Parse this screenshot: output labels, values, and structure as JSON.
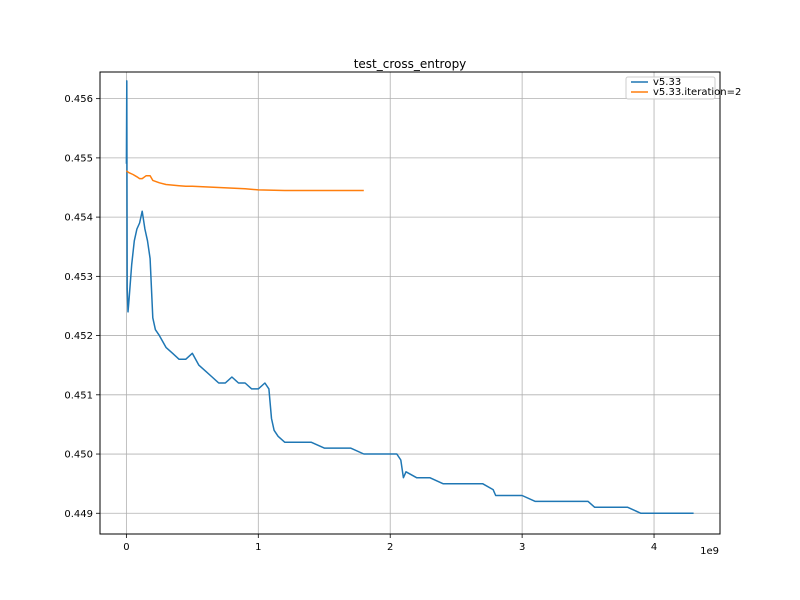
{
  "chart_data": {
    "type": "line",
    "title": "test_cross_entropy",
    "xlabel": "",
    "ylabel": "",
    "x_offset_label": "1e9",
    "xlim": [
      -0.2,
      4.5
    ],
    "ylim": [
      0.44865,
      0.45645
    ],
    "x_ticks": [
      0,
      1,
      2,
      3,
      4
    ],
    "x_tick_labels": [
      "0",
      "1",
      "2",
      "3",
      "4"
    ],
    "y_ticks": [
      0.449,
      0.45,
      0.451,
      0.452,
      0.453,
      0.454,
      0.455,
      0.456
    ],
    "y_tick_labels": [
      "0.449",
      "0.450",
      "0.451",
      "0.452",
      "0.453",
      "0.454",
      "0.455",
      "0.456"
    ],
    "grid": true,
    "legend_position": "top-right",
    "series": [
      {
        "name": "v5.33",
        "color": "#1f77b4",
        "x": [
          0.0,
          0.003,
          0.006,
          0.012,
          0.02,
          0.04,
          0.06,
          0.08,
          0.1,
          0.12,
          0.14,
          0.16,
          0.18,
          0.2,
          0.22,
          0.25,
          0.3,
          0.35,
          0.4,
          0.45,
          0.5,
          0.55,
          0.6,
          0.65,
          0.7,
          0.75,
          0.8,
          0.85,
          0.9,
          0.95,
          1.0,
          1.05,
          1.08,
          1.1,
          1.12,
          1.15,
          1.2,
          1.3,
          1.4,
          1.5,
          1.6,
          1.7,
          1.8,
          1.9,
          2.0,
          2.05,
          2.08,
          2.1,
          2.12,
          2.2,
          2.3,
          2.4,
          2.5,
          2.6,
          2.7,
          2.78,
          2.8,
          2.85,
          2.9,
          3.0,
          3.1,
          3.2,
          3.3,
          3.4,
          3.5,
          3.55,
          3.6,
          3.7,
          3.8,
          3.9,
          4.0,
          4.1,
          4.2,
          4.3
        ],
        "y": [
          0.4549,
          0.4563,
          0.4528,
          0.4524,
          0.4526,
          0.4532,
          0.4536,
          0.4538,
          0.4539,
          0.4541,
          0.4538,
          0.4536,
          0.4533,
          0.4523,
          0.4521,
          0.452,
          0.4518,
          0.4517,
          0.4516,
          0.4516,
          0.4517,
          0.4515,
          0.4514,
          0.4513,
          0.4512,
          0.4512,
          0.4513,
          0.4512,
          0.4512,
          0.4511,
          0.4511,
          0.4512,
          0.4511,
          0.4506,
          0.4504,
          0.4503,
          0.4502,
          0.4502,
          0.4502,
          0.4501,
          0.4501,
          0.4501,
          0.45,
          0.45,
          0.45,
          0.45,
          0.4499,
          0.4496,
          0.4497,
          0.4496,
          0.4496,
          0.4495,
          0.4495,
          0.4495,
          0.4495,
          0.4494,
          0.4493,
          0.4493,
          0.4493,
          0.4493,
          0.4492,
          0.4492,
          0.4492,
          0.4492,
          0.4492,
          0.4491,
          0.4491,
          0.4491,
          0.4491,
          0.449,
          0.449,
          0.449,
          0.449,
          0.449
        ]
      },
      {
        "name": "v5.33.iteration=2",
        "color": "#ff7f0e",
        "x": [
          0.0,
          0.02,
          0.05,
          0.08,
          0.1,
          0.12,
          0.15,
          0.18,
          0.2,
          0.25,
          0.3,
          0.35,
          0.4,
          0.45,
          0.5,
          0.6,
          0.7,
          0.8,
          0.9,
          1.0,
          1.2,
          1.4,
          1.6,
          1.8
        ],
        "y": [
          0.45478,
          0.45475,
          0.45472,
          0.45468,
          0.45465,
          0.45465,
          0.4547,
          0.4547,
          0.45462,
          0.45458,
          0.45455,
          0.45454,
          0.45453,
          0.45452,
          0.45452,
          0.45451,
          0.4545,
          0.45449,
          0.45448,
          0.45446,
          0.45445,
          0.45445,
          0.45445,
          0.45445
        ]
      }
    ]
  }
}
